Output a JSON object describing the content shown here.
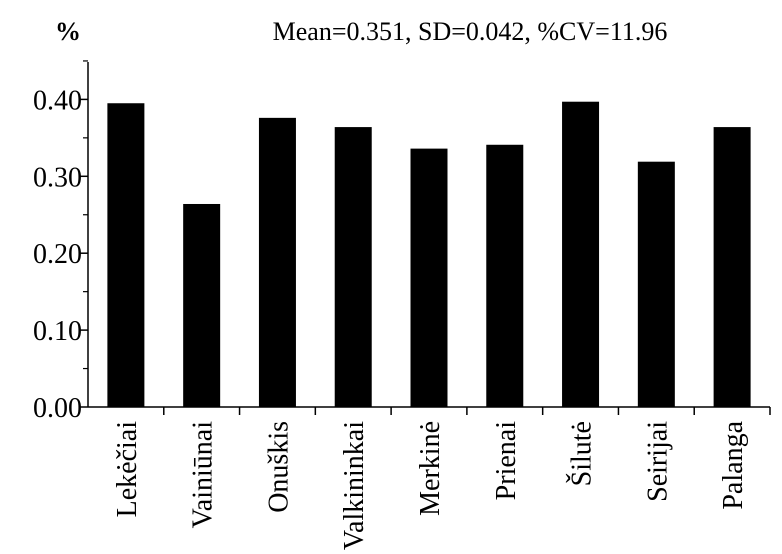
{
  "chart_data": {
    "type": "bar",
    "ylabel": "%",
    "annotation": "Mean=0.351,  SD=0.042,  %CV=11.96",
    "categories": [
      "Lekėčiai",
      "Vainiūnai",
      "Onuškis",
      "Valkininkai",
      "Merkinė",
      "Prienai",
      "Šilutė",
      "Seirijai",
      "Palanga"
    ],
    "values": [
      0.395,
      0.264,
      0.376,
      0.364,
      0.336,
      0.341,
      0.397,
      0.319,
      0.364
    ],
    "ylim": [
      0,
      0.45
    ],
    "yticks": [
      0.0,
      0.1,
      0.2,
      0.3,
      0.4
    ],
    "ytick_labels": [
      "0.00",
      "0.10",
      "0.20",
      "0.30",
      "0.40"
    ],
    "bar_color": "#000000",
    "grid": false,
    "legend": "none"
  }
}
